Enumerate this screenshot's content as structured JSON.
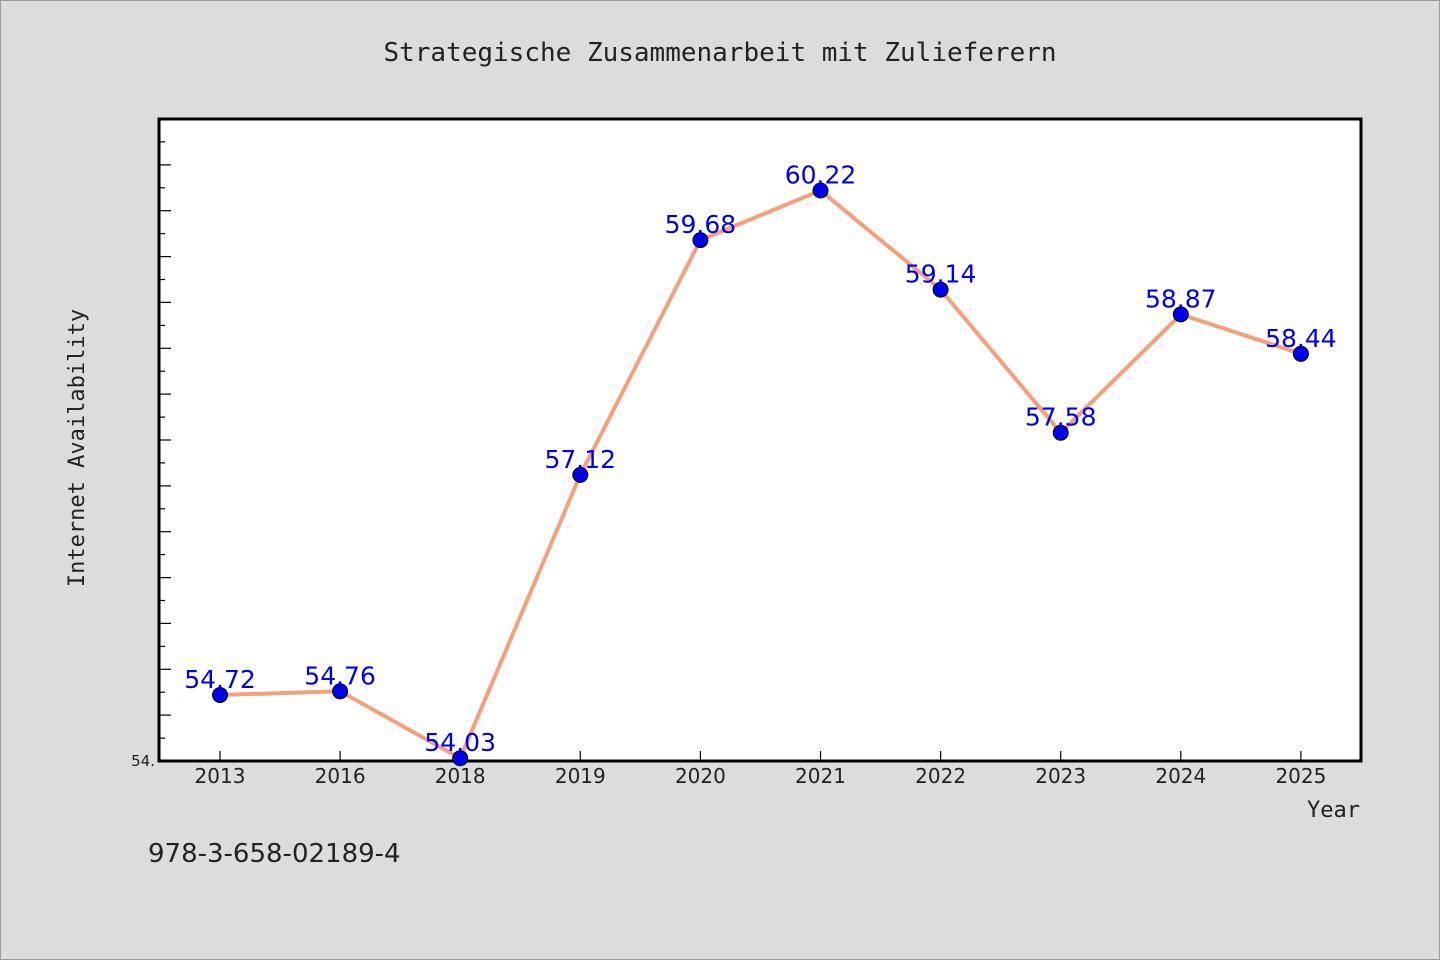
{
  "chart_data": {
    "type": "line",
    "title": "Strategische Zusammenarbeit mit Zulieferern",
    "xlabel": "Year",
    "ylabel": "Internet Availability",
    "categories": [
      "2013",
      "2016",
      "2018",
      "2019",
      "2020",
      "2021",
      "2022",
      "2023",
      "2024",
      "2025"
    ],
    "series": [
      {
        "values": [
          54.72,
          54.76,
          54.03,
          57.12,
          59.68,
          60.22,
          59.14,
          57.58,
          58.87,
          58.44
        ],
        "labels": [
          "54.72",
          "54.76",
          "54.03",
          "57.12",
          "59.68",
          "60.22",
          "59.14",
          "57.58",
          "58.87",
          "58.44"
        ]
      }
    ],
    "ylim": [
      54.0,
      61.0
    ],
    "y_tick_label": "54.",
    "grid": false,
    "line_color": "#f4a07e",
    "marker_color": "#0000ee",
    "label_color": "#0000ee"
  },
  "annotation": {
    "isbn": "978-3-658-02189-4"
  }
}
